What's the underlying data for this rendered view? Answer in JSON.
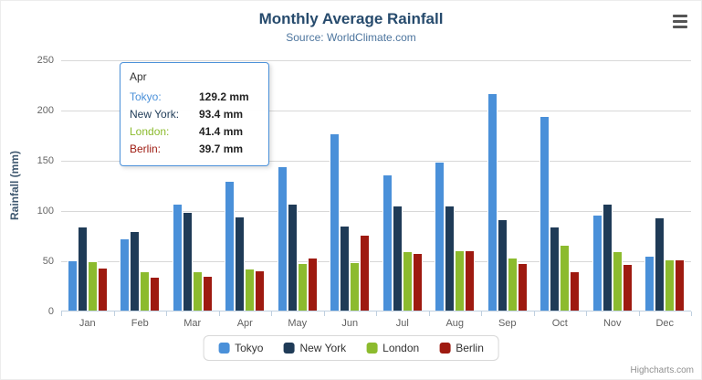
{
  "chart_data": {
    "type": "bar",
    "title": "Monthly Average Rainfall",
    "subtitle": "Source: WorldClimate.com",
    "xlabel": "",
    "ylabel": "Rainfall (mm)",
    "ylim": [
      0,
      250
    ],
    "yticks": [
      0,
      50,
      100,
      150,
      200,
      250
    ],
    "grid": true,
    "legend_position": "bottom",
    "categories": [
      "Jan",
      "Feb",
      "Mar",
      "Apr",
      "May",
      "Jun",
      "Jul",
      "Aug",
      "Sep",
      "Oct",
      "Nov",
      "Dec"
    ],
    "series": [
      {
        "name": "Tokyo",
        "color": "#4A90D9",
        "values": [
          49.9,
          71.5,
          106.4,
          129.2,
          144.0,
          176.0,
          135.6,
          148.5,
          216.4,
          194.1,
          95.6,
          54.4
        ]
      },
      {
        "name": "New York",
        "color": "#1F3B57",
        "values": [
          83.6,
          78.8,
          98.5,
          93.4,
          106.0,
          84.5,
          105.0,
          104.3,
          91.2,
          83.5,
          106.6,
          92.3
        ]
      },
      {
        "name": "London",
        "color": "#8CBB2E",
        "values": [
          48.9,
          38.8,
          39.3,
          41.4,
          47.0,
          48.3,
          59.0,
          59.6,
          52.4,
          65.2,
          59.3,
          51.2
        ]
      },
      {
        "name": "Berlin",
        "color": "#9E1A10",
        "values": [
          42.4,
          33.2,
          34.5,
          39.7,
          52.6,
          75.5,
          57.4,
          60.4,
          47.6,
          39.1,
          46.8,
          51.1
        ]
      }
    ]
  },
  "tooltip": {
    "header": "Apr",
    "rows": [
      {
        "label": "Tokyo:",
        "value": "129.2 mm"
      },
      {
        "label": "New York:",
        "value": "93.4 mm"
      },
      {
        "label": "London:",
        "value": "41.4 mm"
      },
      {
        "label": "Berlin:",
        "value": "39.7 mm"
      }
    ],
    "border_color": "#4A90D9"
  },
  "icons": {
    "export_menu": "hamburger"
  },
  "credits": "Highcharts.com"
}
